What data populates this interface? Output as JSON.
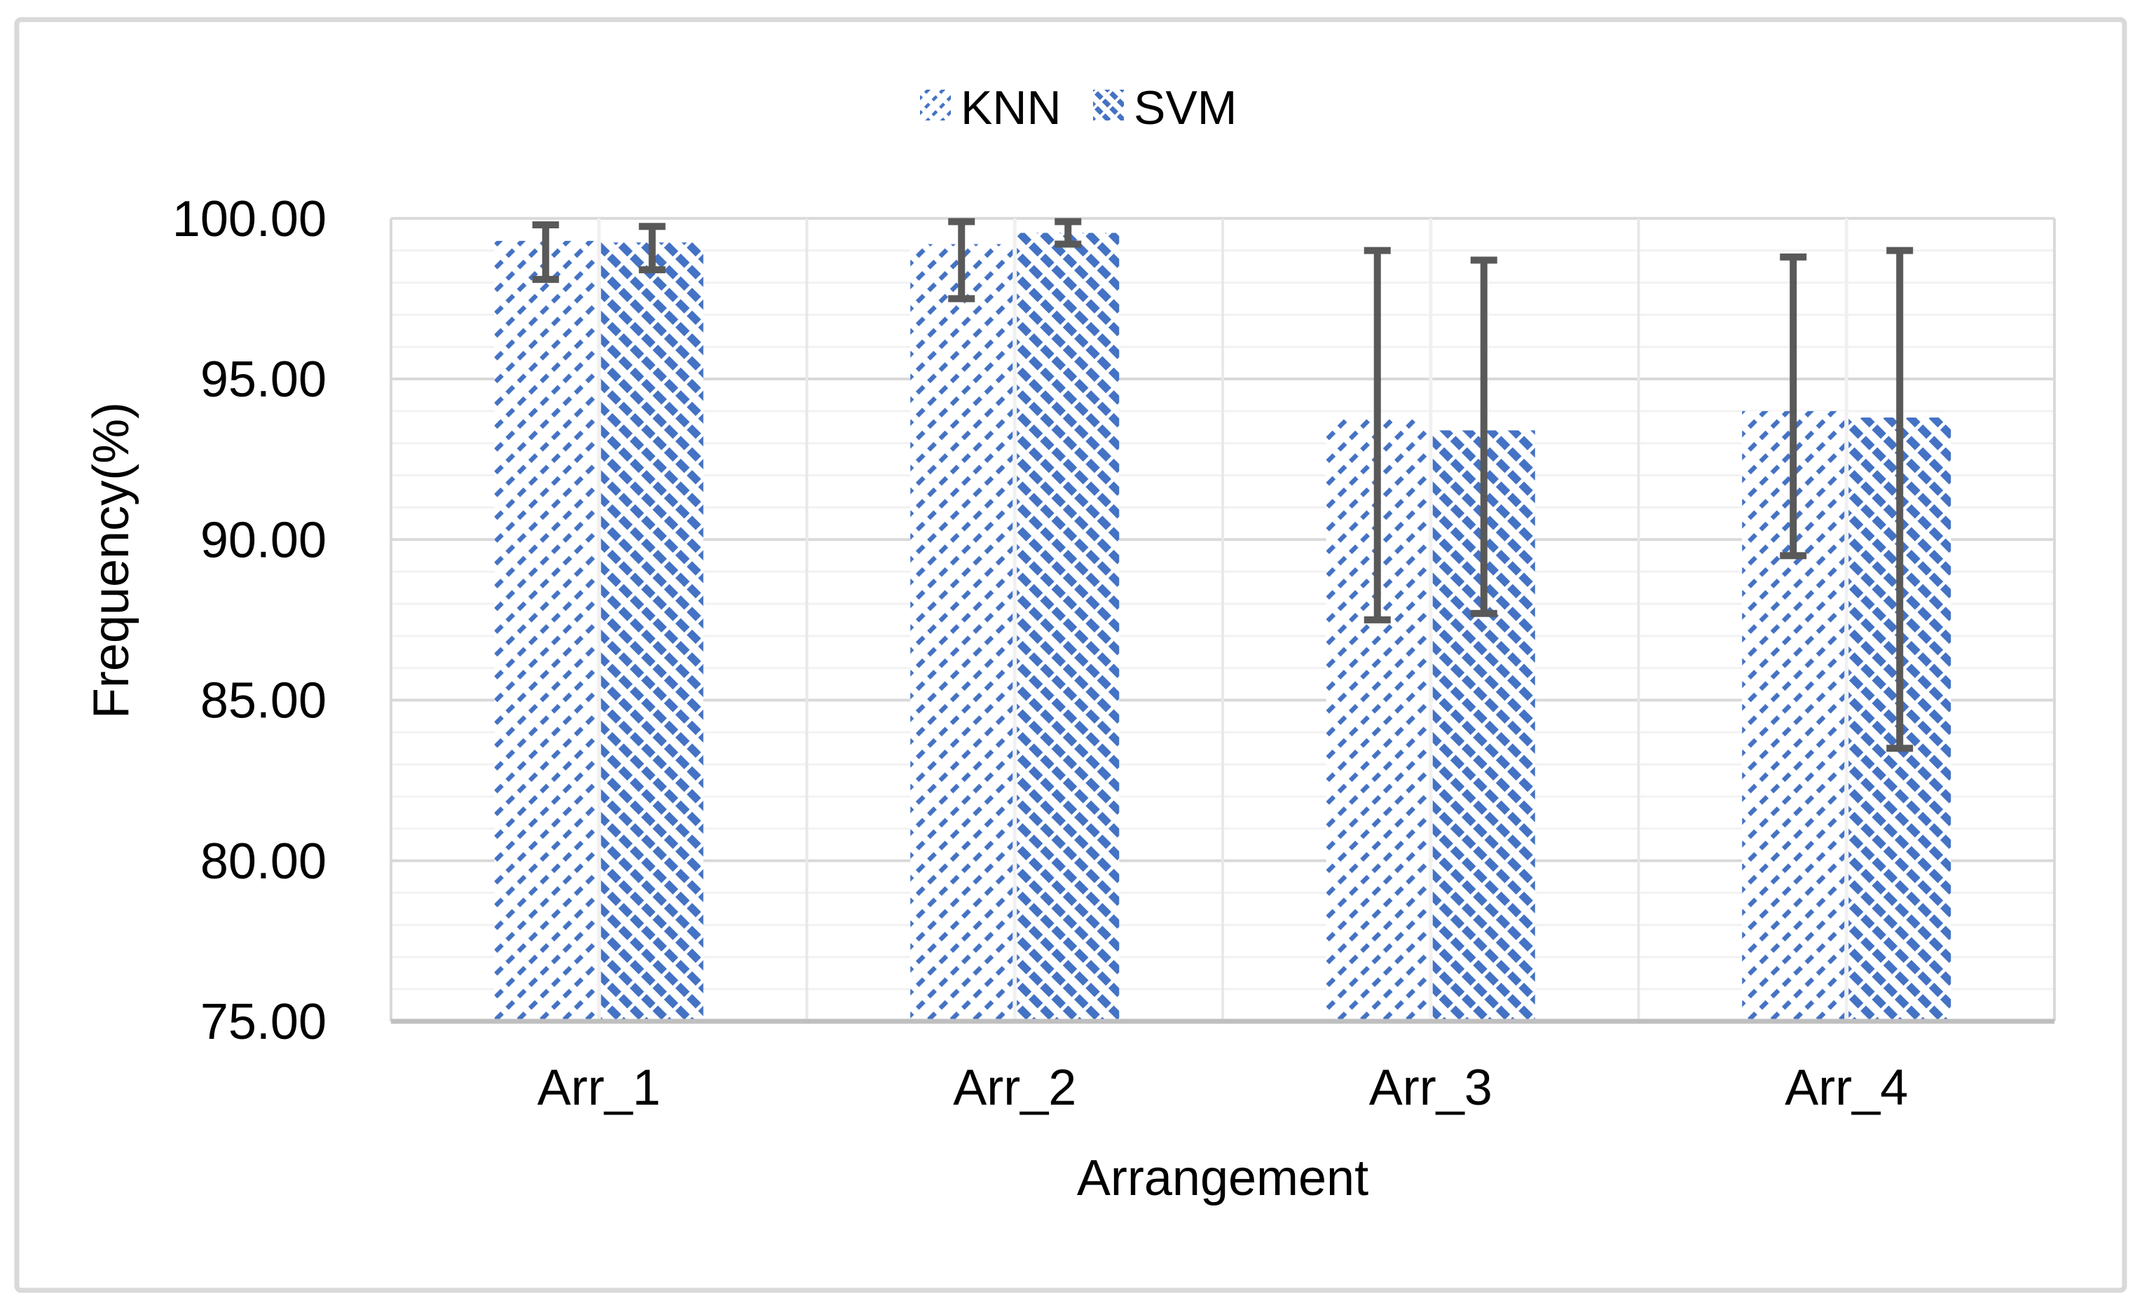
{
  "chart_data": {
    "type": "bar",
    "title": "",
    "categories": [
      "Arr_1",
      "Arr_2",
      "Arr_3",
      "Arr_4"
    ],
    "series": [
      {
        "name": "KNN",
        "pattern": "diagonal-up",
        "values": [
          99.3,
          99.2,
          93.8,
          94.0
        ],
        "error_low": [
          98.1,
          97.5,
          87.5,
          89.5
        ],
        "error_high": [
          99.8,
          99.9,
          99.0,
          98.8
        ]
      },
      {
        "name": "SVM",
        "pattern": "diagonal-down",
        "values": [
          99.25,
          99.55,
          93.4,
          93.8
        ],
        "error_low": [
          98.4,
          99.2,
          87.7,
          83.5
        ],
        "error_high": [
          99.75,
          99.9,
          98.7,
          99.0
        ]
      }
    ],
    "xlabel": "Arrangement",
    "ylabel": "Frequency(%)",
    "ylim": [
      75,
      100
    ],
    "y_major_step": 5,
    "y_minor_step": 1,
    "y_ticks": [
      {
        "label": "100.00",
        "value": 100
      },
      {
        "label": "95.00",
        "value": 95
      },
      {
        "label": "90.00",
        "value": 90
      },
      {
        "label": "85.00",
        "value": 85
      },
      {
        "label": "80.00",
        "value": 80
      },
      {
        "label": "75.00",
        "value": 75
      }
    ],
    "legend_position": "top",
    "grid": true
  },
  "colors": {
    "bar_blue": "#4472C4",
    "error_gray": "#595959",
    "grid_major": "#D9D9D9",
    "grid_minor": "#F2F2F2",
    "grid_vertical_center": "#F0F0F0",
    "grid_vertical_boundary": "#E8E8E8",
    "axis_line": "#BFBFBF",
    "figure_border": "#D9D9D9",
    "text": "#000000",
    "background": "#FFFFFF"
  }
}
